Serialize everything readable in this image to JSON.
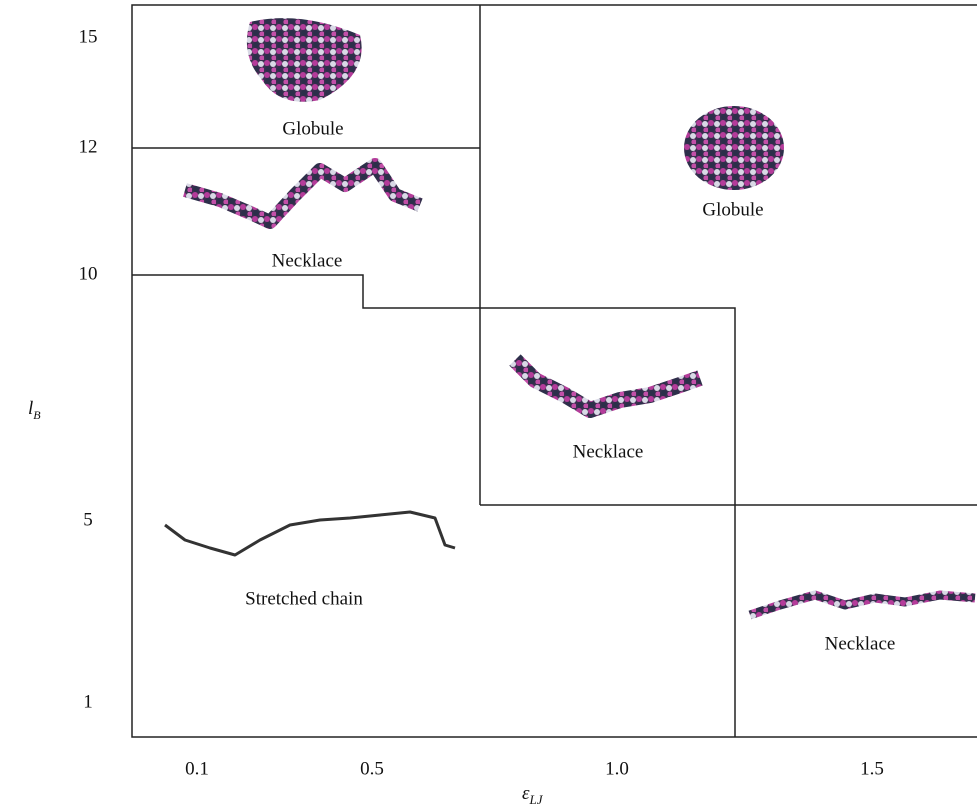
{
  "x_axis": {
    "label": {
      "symbol": "ε",
      "subscript": "LJ"
    },
    "ticks": [
      "0.1",
      "0.5",
      "1.0",
      "1.5"
    ]
  },
  "y_axis": {
    "label": {
      "symbol": "l",
      "subscript": "B"
    },
    "ticks": [
      "15",
      "12",
      "10",
      "5",
      "1"
    ]
  },
  "regions": [
    {
      "label": "Globule"
    },
    {
      "label": "Necklace"
    },
    {
      "label": "Globule"
    },
    {
      "label": "Necklace"
    },
    {
      "label": "Stretched chain"
    },
    {
      "label": "Necklace"
    }
  ]
}
